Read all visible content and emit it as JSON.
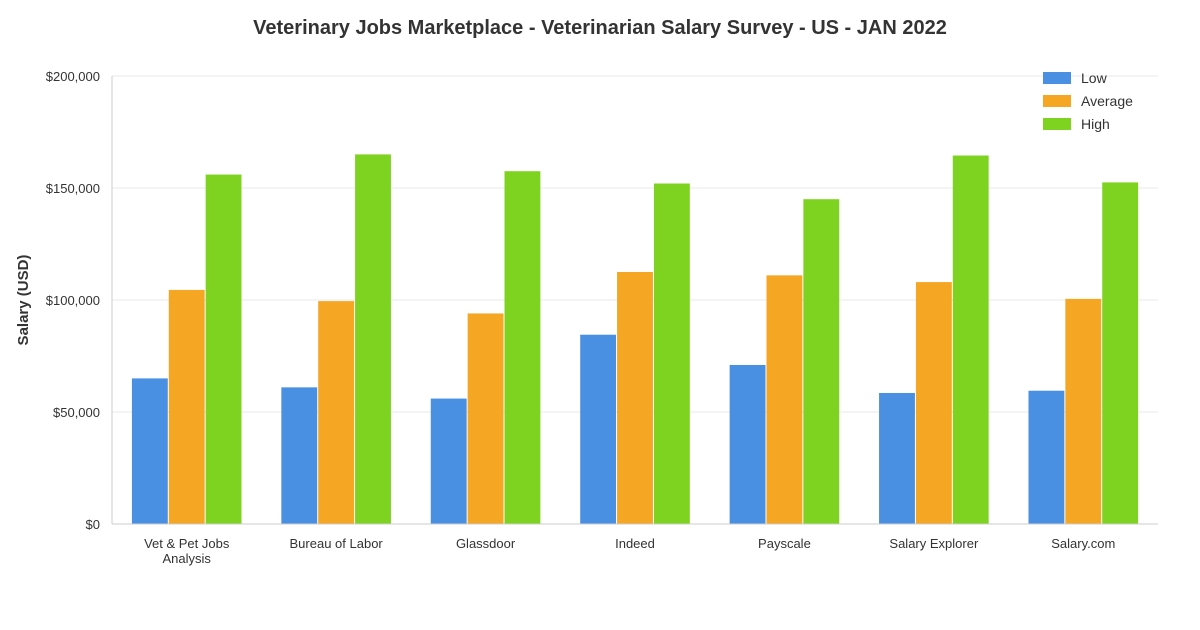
{
  "chart_data": {
    "type": "bar",
    "title": "Veterinary Jobs Marketplace - Veterinarian Salary Survey - US - JAN 2022",
    "xlabel": "",
    "ylabel": "Salary (USD)",
    "ylim": [
      0,
      200000
    ],
    "yticks": [
      0,
      50000,
      100000,
      150000,
      200000
    ],
    "ytick_labels": [
      "$0",
      "$50,000",
      "$100,000",
      "$150,000",
      "$200,000"
    ],
    "grid": true,
    "legend_position": "top-right",
    "categories": [
      [
        "Vet & Pet Jobs",
        "Analysis"
      ],
      [
        "Bureau of Labor"
      ],
      [
        "Glassdoor"
      ],
      [
        "Indeed"
      ],
      [
        "Payscale"
      ],
      [
        "Salary Explorer"
      ],
      [
        "Salary.com"
      ]
    ],
    "series": [
      {
        "name": "Low",
        "color": "#4a90e2",
        "values": [
          65000,
          61000,
          56000,
          84500,
          71000,
          58500,
          59500
        ]
      },
      {
        "name": "Average",
        "color": "#f5a623",
        "values": [
          104500,
          99500,
          94000,
          112500,
          111000,
          108000,
          100500
        ]
      },
      {
        "name": "High",
        "color": "#7ed321",
        "values": [
          156000,
          165000,
          157500,
          152000,
          145000,
          164500,
          152500
        ]
      }
    ]
  }
}
